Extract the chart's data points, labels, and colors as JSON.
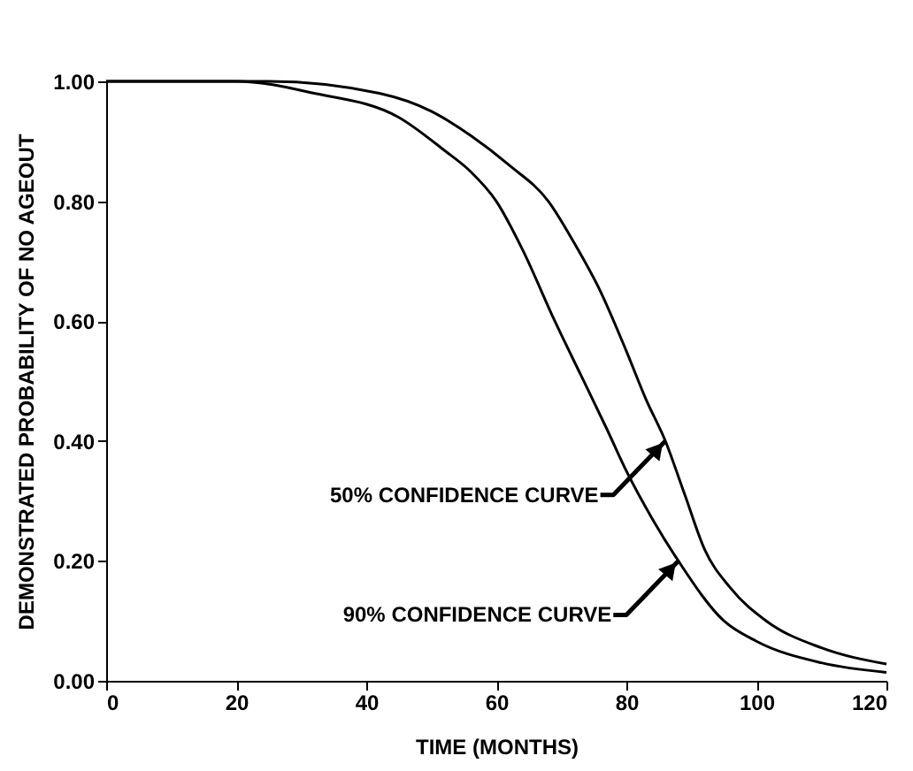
{
  "chart_data": {
    "type": "line",
    "xlabel": "TIME (MONTHS)",
    "ylabel": "DEMONSTRATED PROBABILITY OF NO AGEOUT",
    "xlim": [
      0,
      120
    ],
    "xticks": [
      0,
      20,
      40,
      60,
      80,
      100,
      120
    ],
    "ylim": [
      0,
      1
    ],
    "yticks": [
      {
        "value": 0,
        "label": "0.00"
      },
      {
        "value": 0.2,
        "label": "0.20"
      },
      {
        "value": 0.4,
        "label": "0.40"
      },
      {
        "value": 0.6,
        "label": "0.60"
      },
      {
        "value": 0.8,
        "label": "0.80"
      },
      {
        "value": 1,
        "label": "1.00"
      }
    ],
    "grid": false,
    "marker": "none",
    "line_style": "solid",
    "series": [
      {
        "color": "#000000",
        "x": [
          0,
          25,
          42,
          50,
          56,
          62,
          68,
          72,
          76,
          80,
          83,
          86,
          89,
          92,
          96,
          101.5,
          110,
          120
        ],
        "values": [
          1.0,
          1.0,
          0.98,
          0.95,
          0.91,
          0.86,
          0.8,
          0.73,
          0.65,
          0.55,
          0.47,
          0.4,
          0.31,
          0.22,
          0.155,
          0.1,
          0.055,
          0.028
        ]
      },
      {
        "color": "#000000",
        "x": [
          0,
          20,
          32,
          45,
          52,
          56,
          60,
          64,
          69,
          73,
          77,
          80,
          84,
          88,
          95,
          100,
          110,
          120
        ],
        "values": [
          1.0,
          1.0,
          0.98,
          0.94,
          0.885,
          0.85,
          0.8,
          0.72,
          0.6,
          0.51,
          0.42,
          0.35,
          0.27,
          0.2,
          0.1,
          0.066,
          0.03,
          0.014
        ]
      }
    ],
    "annotations": [
      {
        "text": "50% CONFIDENCE CURVE",
        "x": 86,
        "y": 0.4
      },
      {
        "text": "90% CONFIDENCE CURVE",
        "x": 88,
        "y": 0.2
      }
    ]
  }
}
